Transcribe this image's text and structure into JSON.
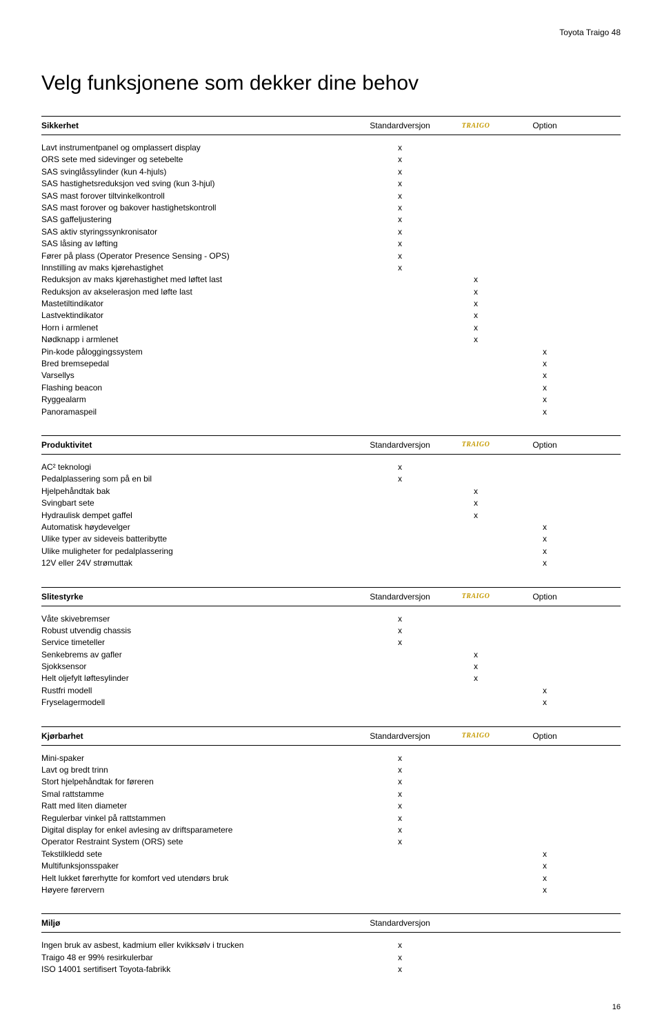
{
  "header": {
    "brand": "Toyota Traigo 48",
    "title": "Velg funksjonene som dekker dine behov"
  },
  "columns": {
    "std": "Standardversjon",
    "option": "Option",
    "logo": "TRAIGO"
  },
  "sections": [
    {
      "title": "Sikkerhet",
      "showLogo": true,
      "showOption": true,
      "rows": [
        {
          "label": "Lavt instrumentpanel og omplassert display",
          "std": "x",
          "logo": "",
          "opt": ""
        },
        {
          "label": "ORS sete med sidevinger og setebelte",
          "std": "x",
          "logo": "",
          "opt": ""
        },
        {
          "label": "SAS svinglåssylinder (kun 4-hjuls)",
          "std": "x",
          "logo": "",
          "opt": ""
        },
        {
          "label": "SAS hastighetsreduksjon ved sving (kun 3-hjul)",
          "std": "x",
          "logo": "",
          "opt": ""
        },
        {
          "label": "SAS mast forover tiltvinkelkontroll",
          "std": "x",
          "logo": "",
          "opt": ""
        },
        {
          "label": "SAS mast forover og bakover hastighetskontroll",
          "std": "x",
          "logo": "",
          "opt": ""
        },
        {
          "label": "SAS gaffeljustering",
          "std": "x",
          "logo": "",
          "opt": ""
        },
        {
          "label": "SAS aktiv styringssynkronisator",
          "std": "x",
          "logo": "",
          "opt": ""
        },
        {
          "label": "SAS låsing av løfting",
          "std": "x",
          "logo": "",
          "opt": ""
        },
        {
          "label": "Fører på plass (Operator Presence Sensing - OPS)",
          "std": "x",
          "logo": "",
          "opt": ""
        },
        {
          "label": "Innstilling av maks kjørehastighet",
          "std": "x",
          "logo": "",
          "opt": ""
        },
        {
          "label": "Reduksjon av maks kjørehastighet med løftet last",
          "std": "",
          "logo": "x",
          "opt": ""
        },
        {
          "label": "Reduksjon av akselerasjon med løfte last",
          "std": "",
          "logo": "x",
          "opt": ""
        },
        {
          "label": "Mastetiltindikator",
          "std": "",
          "logo": "x",
          "opt": ""
        },
        {
          "label": "Lastvektindikator",
          "std": "",
          "logo": "x",
          "opt": ""
        },
        {
          "label": "Horn i armlenet",
          "std": "",
          "logo": "x",
          "opt": ""
        },
        {
          "label": "Nødknapp i armlenet",
          "std": "",
          "logo": "x",
          "opt": ""
        },
        {
          "label": "Pin-kode påloggingssystem",
          "std": "",
          "logo": "",
          "opt": "x"
        },
        {
          "label": "Bred bremsepedal",
          "std": "",
          "logo": "",
          "opt": "x"
        },
        {
          "label": "Varsellys",
          "std": "",
          "logo": "",
          "opt": "x"
        },
        {
          "label": "Flashing beacon",
          "std": "",
          "logo": "",
          "opt": "x"
        },
        {
          "label": "Ryggealarm",
          "std": "",
          "logo": "",
          "opt": "x"
        },
        {
          "label": "Panoramaspeil",
          "std": "",
          "logo": "",
          "opt": "x"
        }
      ]
    },
    {
      "title": "Produktivitet",
      "showLogo": true,
      "showOption": true,
      "rows": [
        {
          "label": "AC² teknologi",
          "std": "x",
          "logo": "",
          "opt": ""
        },
        {
          "label": "Pedalplassering som på en bil",
          "std": "x",
          "logo": "",
          "opt": ""
        },
        {
          "label": "Hjelpehåndtak bak",
          "std": "",
          "logo": "x",
          "opt": ""
        },
        {
          "label": "Svingbart sete",
          "std": "",
          "logo": "x",
          "opt": ""
        },
        {
          "label": "Hydraulisk dempet gaffel",
          "std": "",
          "logo": "x",
          "opt": ""
        },
        {
          "label": "Automatisk høydevelger",
          "std": "",
          "logo": "",
          "opt": "x"
        },
        {
          "label": "Ulike typer av sideveis batteribytte",
          "std": "",
          "logo": "",
          "opt": "x"
        },
        {
          "label": "Ulike muligheter for pedalplassering",
          "std": "",
          "logo": "",
          "opt": "x"
        },
        {
          "label": "12V eller 24V strømuttak",
          "std": "",
          "logo": "",
          "opt": "x"
        }
      ]
    },
    {
      "title": "Slitestyrke",
      "showLogo": true,
      "showOption": true,
      "rows": [
        {
          "label": "Våte skivebremser",
          "std": "x",
          "logo": "",
          "opt": ""
        },
        {
          "label": "Robust utvendig chassis",
          "std": "x",
          "logo": "",
          "opt": ""
        },
        {
          "label": "Service timeteller",
          "std": "x",
          "logo": "",
          "opt": ""
        },
        {
          "label": "Senkebrems av gafler",
          "std": "",
          "logo": "x",
          "opt": ""
        },
        {
          "label": "Sjokksensor",
          "std": "",
          "logo": "x",
          "opt": ""
        },
        {
          "label": "Helt oljefylt løftesylinder",
          "std": "",
          "logo": "x",
          "opt": ""
        },
        {
          "label": "Rustfri modell",
          "std": "",
          "logo": "",
          "opt": "x"
        },
        {
          "label": "Fryselagermodell",
          "std": "",
          "logo": "",
          "opt": "x"
        }
      ]
    },
    {
      "title": "Kjørbarhet",
      "showLogo": true,
      "showOption": true,
      "rows": [
        {
          "label": "Mini-spaker",
          "std": "x",
          "logo": "",
          "opt": ""
        },
        {
          "label": "Lavt og bredt trinn",
          "std": "x",
          "logo": "",
          "opt": ""
        },
        {
          "label": "Stort hjelpehåndtak for føreren",
          "std": "x",
          "logo": "",
          "opt": ""
        },
        {
          "label": "Smal rattstamme",
          "std": "x",
          "logo": "",
          "opt": ""
        },
        {
          "label": "Ratt med liten diameter",
          "std": "x",
          "logo": "",
          "opt": ""
        },
        {
          "label": "Regulerbar vinkel på rattstammen",
          "std": "x",
          "logo": "",
          "opt": ""
        },
        {
          "label": "Digital display for enkel avlesing av driftsparametere",
          "std": "x",
          "logo": "",
          "opt": ""
        },
        {
          "label": "Operator Restraint System (ORS) sete",
          "std": "x",
          "logo": "",
          "opt": ""
        },
        {
          "label": "Tekstilkledd sete",
          "std": "",
          "logo": "",
          "opt": "x"
        },
        {
          "label": "Multifunksjonsspaker",
          "std": "",
          "logo": "",
          "opt": "x"
        },
        {
          "label": "Helt lukket førerhytte for komfort ved utendørs bruk",
          "std": "",
          "logo": "",
          "opt": "x"
        },
        {
          "label": "Høyere førervern",
          "std": "",
          "logo": "",
          "opt": "x"
        }
      ]
    },
    {
      "title": "Miljø",
      "showLogo": false,
      "showOption": false,
      "rows": [
        {
          "label": "Ingen bruk av asbest, kadmium eller kvikksølv i trucken",
          "std": "x",
          "logo": "",
          "opt": ""
        },
        {
          "label": "Traigo 48 er 99% resirkulerbar",
          "std": "x",
          "logo": "",
          "opt": ""
        },
        {
          "label": "ISO 14001 sertifisert Toyota-fabrikk",
          "std": "x",
          "logo": "",
          "opt": ""
        }
      ]
    }
  ],
  "pageNumber": "16"
}
